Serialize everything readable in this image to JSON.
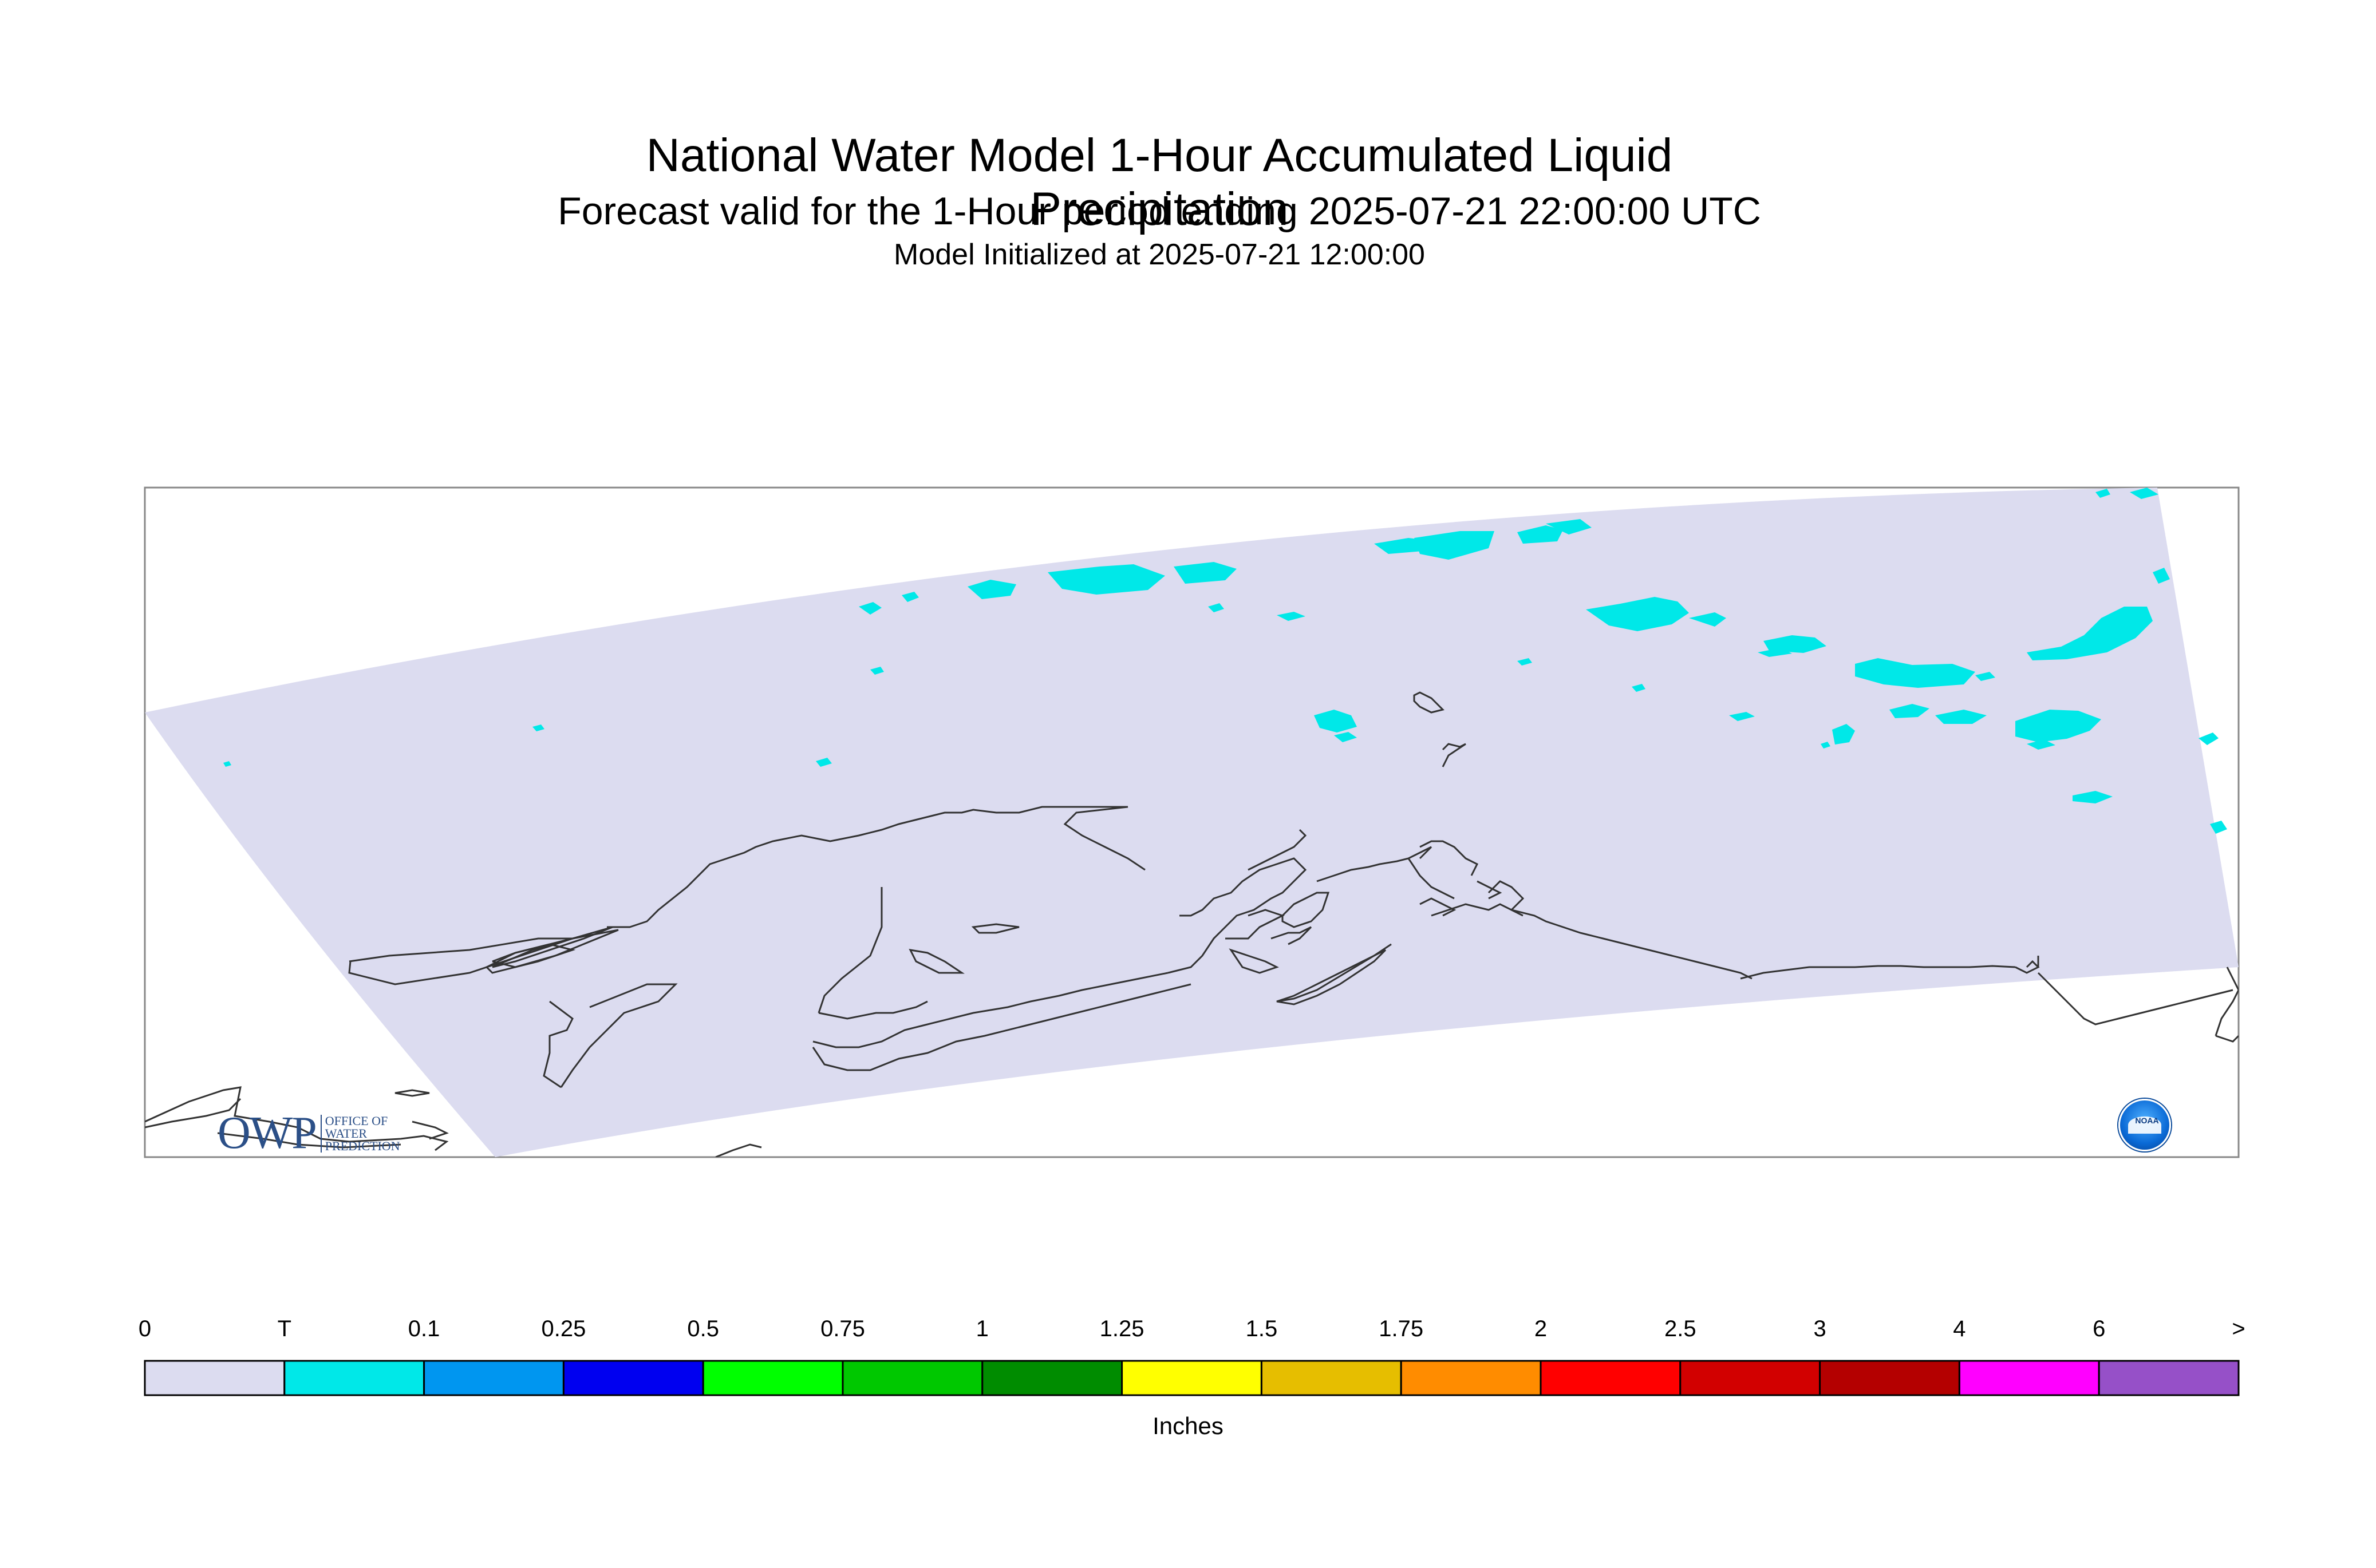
{
  "header": {
    "title": "National Water Model 1-Hour Accumulated Liquid Precipitation",
    "subtitle": "Forecast valid for the 1-Hour period ending 2025-07-21 22:00:00 UTC",
    "init_line": "Model Initialized at 2025-07-21 12:00:00"
  },
  "colorbar": {
    "units": "Inches",
    "labels": [
      "0",
      "T",
      "0.1",
      "0.25",
      "0.5",
      "0.75",
      "1",
      "1.25",
      "1.5",
      "1.75",
      "2",
      "2.5",
      "3",
      "4",
      "6",
      ">"
    ],
    "colors": [
      "#dcdcf0",
      "#00e8e8",
      "#0096f0",
      "#0000f0",
      "#00ff00",
      "#00c800",
      "#008c00",
      "#ffff00",
      "#e6be00",
      "#ff8c00",
      "#ff0000",
      "#d20000",
      "#b40000",
      "#ff00ff",
      "#9650c8"
    ]
  },
  "map": {
    "domain_fill": "#dcdcf0",
    "precip_color": "#00e8e8",
    "coastline_color": "#333333"
  },
  "logos": {
    "owp_big": "OWP",
    "owp_small": [
      "OFFICE OF",
      "WATER",
      "PREDICTION"
    ],
    "noaa_text": "NOAA"
  }
}
